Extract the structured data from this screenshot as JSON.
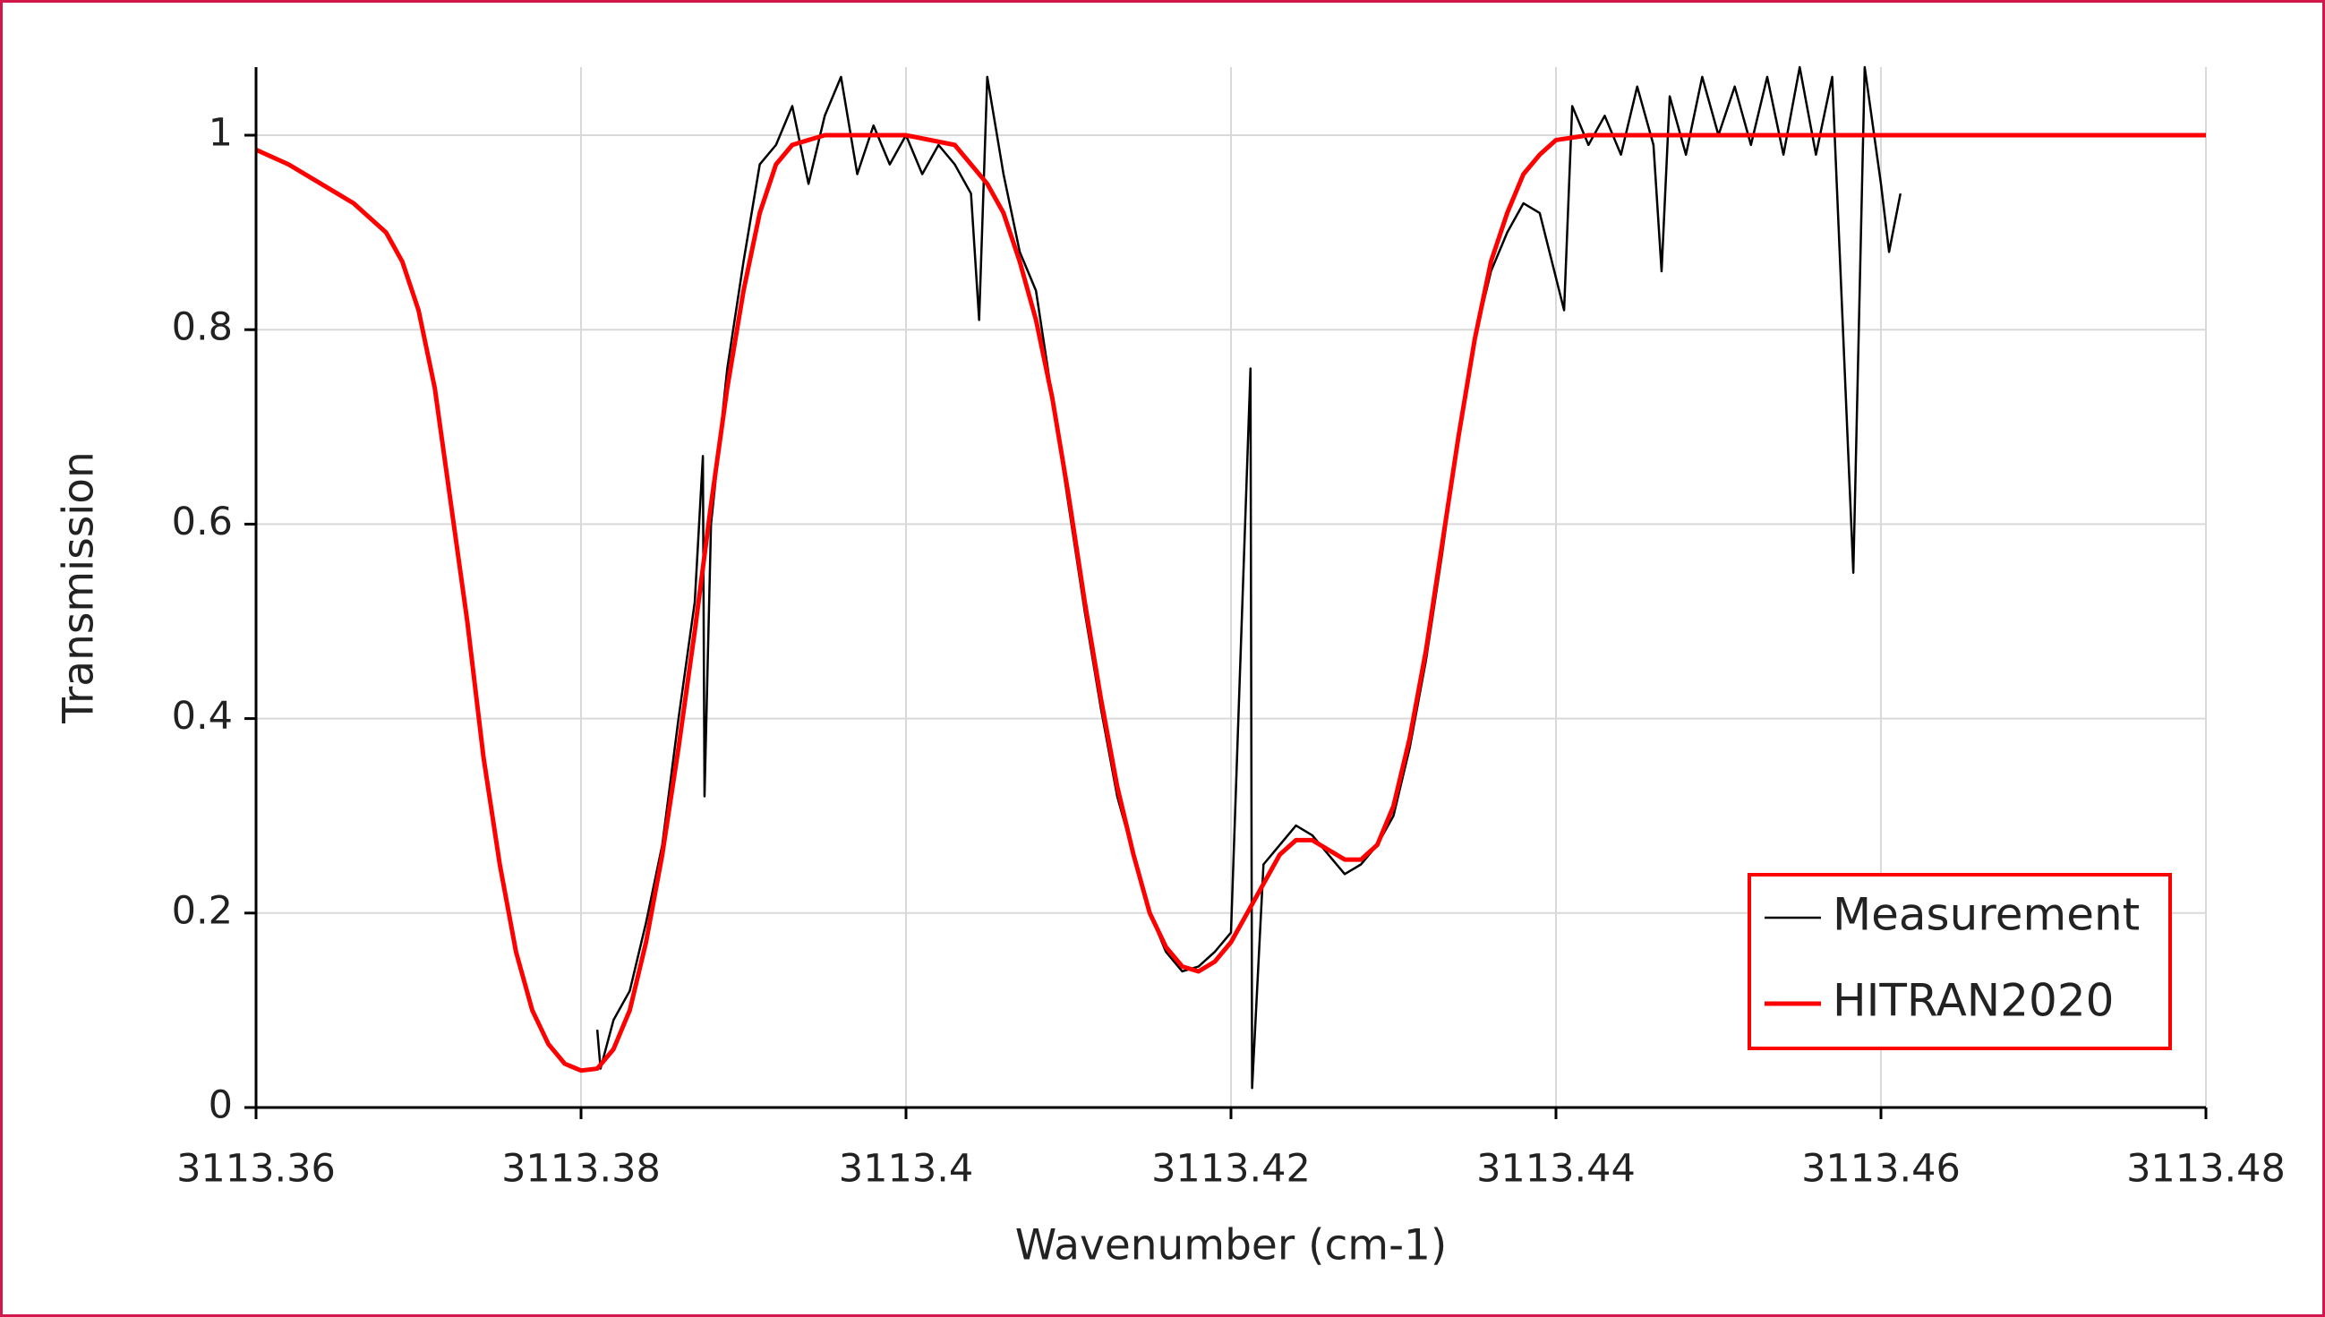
{
  "chart_data": {
    "type": "line",
    "xlabel": "Wavenumber (cm-1)",
    "ylabel": "Transmission",
    "xlim": [
      3113.36,
      3113.48
    ],
    "xticks": [
      3113.36,
      3113.38,
      3113.4,
      3113.42,
      3113.44,
      3113.46,
      3113.48
    ],
    "ylim": [
      0,
      1.07
    ],
    "yticks": [
      0,
      0.2,
      0.4,
      0.6,
      0.8,
      1
    ],
    "grid": true,
    "legend": "lower right",
    "series": [
      {
        "name": "Measurement",
        "color": "#000000",
        "x": [
          3113.381,
          3113.3812,
          3113.382,
          3113.383,
          3113.384,
          3113.385,
          3113.386,
          3113.387,
          3113.3875,
          3113.3876,
          3113.388,
          3113.389,
          3113.39,
          3113.391,
          3113.392,
          3113.393,
          3113.394,
          3113.395,
          3113.396,
          3113.397,
          3113.398,
          3113.399,
          3113.4,
          3113.401,
          3113.402,
          3113.403,
          3113.404,
          3113.4045,
          3113.405,
          3113.406,
          3113.407,
          3113.408,
          3113.409,
          3113.41,
          3113.411,
          3113.412,
          3113.413,
          3113.414,
          3113.415,
          3113.416,
          3113.417,
          3113.418,
          3113.419,
          3113.42,
          3113.4212,
          3113.4213,
          3113.422,
          3113.423,
          3113.424,
          3113.425,
          3113.426,
          3113.427,
          3113.428,
          3113.429,
          3113.43,
          3113.431,
          3113.432,
          3113.433,
          3113.434,
          3113.435,
          3113.436,
          3113.437,
          3113.438,
          3113.439,
          3113.4405,
          3113.441,
          3113.442,
          3113.443,
          3113.444,
          3113.445,
          3113.446,
          3113.4465,
          3113.447,
          3113.448,
          3113.449,
          3113.45,
          3113.451,
          3113.452,
          3113.453,
          3113.454,
          3113.455,
          3113.456,
          3113.457,
          3113.4583,
          3113.459,
          3113.46,
          3113.4605,
          3113.4612
        ],
        "values": [
          0.08,
          0.04,
          0.09,
          0.12,
          0.19,
          0.27,
          0.4,
          0.52,
          0.67,
          0.32,
          0.6,
          0.76,
          0.87,
          0.97,
          0.99,
          1.03,
          0.95,
          1.02,
          1.06,
          0.96,
          1.01,
          0.97,
          1.0,
          0.96,
          0.99,
          0.97,
          0.94,
          0.81,
          1.06,
          0.96,
          0.88,
          0.84,
          0.73,
          0.62,
          0.51,
          0.41,
          0.32,
          0.26,
          0.2,
          0.16,
          0.14,
          0.145,
          0.16,
          0.18,
          0.76,
          0.02,
          0.25,
          0.27,
          0.29,
          0.28,
          0.26,
          0.24,
          0.25,
          0.27,
          0.3,
          0.37,
          0.46,
          0.57,
          0.69,
          0.79,
          0.86,
          0.9,
          0.93,
          0.92,
          0.82,
          1.03,
          0.99,
          1.02,
          0.98,
          1.05,
          0.99,
          0.86,
          1.04,
          0.98,
          1.06,
          1.0,
          1.05,
          0.99,
          1.06,
          0.98,
          1.07,
          0.98,
          1.06,
          0.55,
          1.07,
          0.95,
          0.88,
          0.94
        ]
      },
      {
        "name": "HITRAN2020",
        "color": "#ff0000",
        "x": [
          3113.36,
          3113.362,
          3113.364,
          3113.366,
          3113.368,
          3113.369,
          3113.37,
          3113.371,
          3113.372,
          3113.373,
          3113.374,
          3113.375,
          3113.376,
          3113.377,
          3113.378,
          3113.379,
          3113.38,
          3113.381,
          3113.382,
          3113.383,
          3113.384,
          3113.385,
          3113.386,
          3113.387,
          3113.388,
          3113.389,
          3113.39,
          3113.391,
          3113.392,
          3113.393,
          3113.395,
          3113.4,
          3113.403,
          3113.405,
          3113.406,
          3113.407,
          3113.408,
          3113.409,
          3113.41,
          3113.411,
          3113.412,
          3113.413,
          3113.414,
          3113.415,
          3113.416,
          3113.417,
          3113.418,
          3113.419,
          3113.42,
          3113.421,
          3113.422,
          3113.423,
          3113.424,
          3113.425,
          3113.426,
          3113.427,
          3113.428,
          3113.429,
          3113.43,
          3113.431,
          3113.432,
          3113.433,
          3113.434,
          3113.435,
          3113.436,
          3113.437,
          3113.438,
          3113.439,
          3113.44,
          3113.442,
          3113.48
        ],
        "values": [
          0.985,
          0.97,
          0.95,
          0.93,
          0.9,
          0.87,
          0.82,
          0.74,
          0.62,
          0.5,
          0.36,
          0.25,
          0.16,
          0.1,
          0.065,
          0.045,
          0.038,
          0.04,
          0.06,
          0.1,
          0.17,
          0.26,
          0.37,
          0.49,
          0.62,
          0.74,
          0.84,
          0.92,
          0.97,
          0.99,
          1.0,
          1.0,
          0.99,
          0.95,
          0.92,
          0.87,
          0.81,
          0.73,
          0.63,
          0.52,
          0.42,
          0.33,
          0.26,
          0.2,
          0.165,
          0.145,
          0.14,
          0.15,
          0.17,
          0.2,
          0.23,
          0.26,
          0.275,
          0.275,
          0.265,
          0.255,
          0.255,
          0.27,
          0.31,
          0.38,
          0.47,
          0.58,
          0.69,
          0.79,
          0.87,
          0.92,
          0.96,
          0.98,
          0.995,
          1.0,
          1.0
        ]
      }
    ]
  }
}
